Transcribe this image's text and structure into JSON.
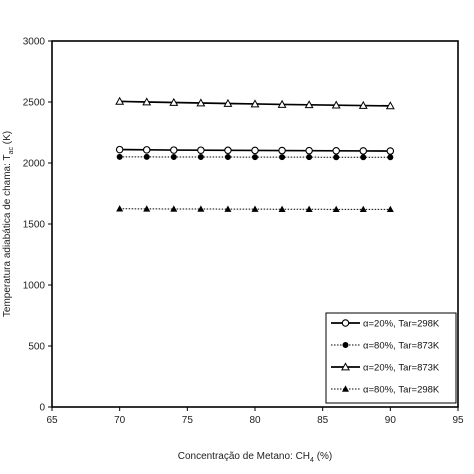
{
  "chart_data": {
    "type": "line",
    "xlabel": {
      "prefix": "Concentração de Metano: CH",
      "sub": "4",
      "suffix": " (%)"
    },
    "ylabel": {
      "prefix": "Temperatura adiabática de chama: T",
      "sub": "ac",
      "suffix": " (K)"
    },
    "xlim": [
      65,
      95
    ],
    "ylim": [
      0,
      3000
    ],
    "xticks": [
      65,
      70,
      75,
      80,
      85,
      90,
      95
    ],
    "yticks": [
      0,
      500,
      1000,
      1500,
      2000,
      2500,
      3000
    ],
    "grid": false,
    "legend_position": "bottom-right",
    "x": [
      70,
      72,
      74,
      76,
      78,
      80,
      82,
      84,
      86,
      88,
      90
    ],
    "series": [
      {
        "name": "α=20%, Tar=298K",
        "line_style": "solid",
        "marker": "circle-open",
        "values": [
          2110,
          2108,
          2106,
          2105,
          2104,
          2103,
          2102,
          2101,
          2100,
          2099,
          2098
        ]
      },
      {
        "name": "α=80%, Tar=873K",
        "line_style": "dotted",
        "marker": "circle-filled",
        "values": [
          2050,
          2050,
          2049,
          2049,
          2049,
          2048,
          2048,
          2048,
          2047,
          2047,
          2047
        ]
      },
      {
        "name": "α=20%, Tar=873K",
        "line_style": "solid",
        "marker": "triangle-open",
        "values": [
          2505,
          2500,
          2496,
          2492,
          2488,
          2484,
          2480,
          2477,
          2474,
          2471,
          2468
        ]
      },
      {
        "name": "α=80%, Tar=298K",
        "line_style": "dotted",
        "marker": "triangle-filled",
        "values": [
          1625,
          1624,
          1623,
          1623,
          1622,
          1622,
          1621,
          1621,
          1620,
          1620,
          1620
        ]
      }
    ]
  }
}
